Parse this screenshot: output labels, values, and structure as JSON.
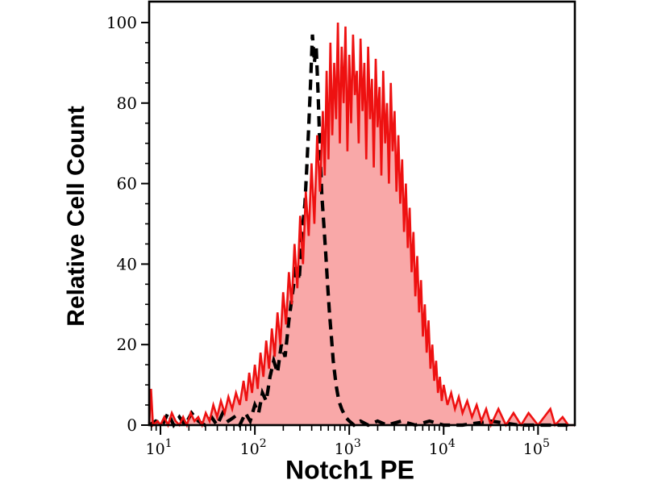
{
  "figure": {
    "background_color": "#ffffff",
    "axis_color": "#000000"
  },
  "chart_data": {
    "type": "area",
    "subtype": "flow-cytometry-histogram-overlay",
    "title": "",
    "xlabel": "Notch1 PE",
    "ylabel": "Relative Cell Count",
    "x_scale": "log10",
    "x_range_log10": [
      0.88,
      5.39
    ],
    "y_range": [
      0,
      105.2
    ],
    "x_ticks_exponents": [
      1,
      2,
      3,
      4,
      5
    ],
    "x_tick_base": "10",
    "y_ticks": [
      0,
      20,
      40,
      60,
      80,
      100
    ],
    "y_minor_step": 5,
    "grid": false,
    "legend": "none",
    "series": [
      {
        "name": "stained-sample-red-filled",
        "style": "solid-filled",
        "line_color": "#ee1111",
        "fill_color": "#f9a8a8",
        "points_log10x_value": [
          [
            0.88,
            0
          ],
          [
            0.9,
            9
          ],
          [
            0.92,
            0
          ],
          [
            0.97,
            1
          ],
          [
            1.0,
            0
          ],
          [
            1.04,
            2
          ],
          [
            1.08,
            0
          ],
          [
            1.12,
            3
          ],
          [
            1.16,
            1
          ],
          [
            1.2,
            0
          ],
          [
            1.24,
            2
          ],
          [
            1.28,
            0
          ],
          [
            1.32,
            3
          ],
          [
            1.36,
            1
          ],
          [
            1.4,
            2
          ],
          [
            1.44,
            0
          ],
          [
            1.48,
            3
          ],
          [
            1.52,
            1
          ],
          [
            1.56,
            5
          ],
          [
            1.6,
            2
          ],
          [
            1.64,
            6
          ],
          [
            1.68,
            3
          ],
          [
            1.72,
            7
          ],
          [
            1.76,
            4
          ],
          [
            1.8,
            8
          ],
          [
            1.84,
            5
          ],
          [
            1.88,
            11
          ],
          [
            1.91,
            6
          ],
          [
            1.94,
            13
          ],
          [
            1.97,
            8
          ],
          [
            2.0,
            15
          ],
          [
            2.03,
            9
          ],
          [
            2.06,
            18
          ],
          [
            2.09,
            12
          ],
          [
            2.12,
            21
          ],
          [
            2.15,
            14
          ],
          [
            2.18,
            24
          ],
          [
            2.21,
            17
          ],
          [
            2.24,
            28
          ],
          [
            2.27,
            20
          ],
          [
            2.3,
            33
          ],
          [
            2.33,
            25
          ],
          [
            2.36,
            38
          ],
          [
            2.39,
            30
          ],
          [
            2.42,
            45
          ],
          [
            2.45,
            34
          ],
          [
            2.48,
            52
          ],
          [
            2.51,
            40
          ],
          [
            2.54,
            58
          ],
          [
            2.57,
            47
          ],
          [
            2.6,
            65
          ],
          [
            2.63,
            50
          ],
          [
            2.66,
            72
          ],
          [
            2.69,
            58
          ],
          [
            2.72,
            78
          ],
          [
            2.74,
            62
          ],
          [
            2.76,
            88
          ],
          [
            2.78,
            66
          ],
          [
            2.8,
            95
          ],
          [
            2.82,
            72
          ],
          [
            2.84,
            90
          ],
          [
            2.86,
            76
          ],
          [
            2.88,
            100
          ],
          [
            2.9,
            70
          ],
          [
            2.92,
            94
          ],
          [
            2.94,
            80
          ],
          [
            2.96,
            99
          ],
          [
            2.98,
            68
          ],
          [
            3.0,
            92
          ],
          [
            3.02,
            75
          ],
          [
            3.04,
            97
          ],
          [
            3.06,
            82
          ],
          [
            3.08,
            88
          ],
          [
            3.1,
            70
          ],
          [
            3.12,
            96
          ],
          [
            3.14,
            78
          ],
          [
            3.16,
            90
          ],
          [
            3.18,
            66
          ],
          [
            3.2,
            94
          ],
          [
            3.22,
            76
          ],
          [
            3.24,
            86
          ],
          [
            3.26,
            64
          ],
          [
            3.28,
            91
          ],
          [
            3.3,
            74
          ],
          [
            3.32,
            84
          ],
          [
            3.34,
            62
          ],
          [
            3.36,
            88
          ],
          [
            3.38,
            70
          ],
          [
            3.4,
            80
          ],
          [
            3.42,
            60
          ],
          [
            3.44,
            85
          ],
          [
            3.46,
            68
          ],
          [
            3.48,
            78
          ],
          [
            3.5,
            58
          ],
          [
            3.52,
            72
          ],
          [
            3.54,
            55
          ],
          [
            3.56,
            66
          ],
          [
            3.58,
            48
          ],
          [
            3.6,
            60
          ],
          [
            3.62,
            44
          ],
          [
            3.64,
            54
          ],
          [
            3.66,
            38
          ],
          [
            3.68,
            48
          ],
          [
            3.7,
            32
          ],
          [
            3.72,
            42
          ],
          [
            3.74,
            28
          ],
          [
            3.76,
            36
          ],
          [
            3.78,
            22
          ],
          [
            3.8,
            30
          ],
          [
            3.82,
            18
          ],
          [
            3.84,
            26
          ],
          [
            3.86,
            14
          ],
          [
            3.88,
            20
          ],
          [
            3.9,
            11
          ],
          [
            3.92,
            16
          ],
          [
            3.94,
            8
          ],
          [
            3.96,
            12
          ],
          [
            3.98,
            6
          ],
          [
            4.0,
            10
          ],
          [
            4.04,
            5
          ],
          [
            4.08,
            8
          ],
          [
            4.12,
            4
          ],
          [
            4.16,
            7
          ],
          [
            4.2,
            3
          ],
          [
            4.25,
            6
          ],
          [
            4.3,
            2
          ],
          [
            4.35,
            5
          ],
          [
            4.4,
            1
          ],
          [
            4.45,
            4
          ],
          [
            4.5,
            0
          ],
          [
            4.58,
            4
          ],
          [
            4.66,
            0
          ],
          [
            4.74,
            3
          ],
          [
            4.82,
            0
          ],
          [
            4.9,
            3
          ],
          [
            5.0,
            0
          ],
          [
            5.13,
            4
          ],
          [
            5.18,
            0
          ],
          [
            5.26,
            2
          ],
          [
            5.32,
            0
          ],
          [
            5.39,
            0
          ]
        ]
      },
      {
        "name": "control-black-dashed",
        "style": "dashed",
        "line_color": "#000000",
        "fill_color": "none",
        "points_log10x_value": [
          [
            0.88,
            0
          ],
          [
            0.95,
            1
          ],
          [
            1.02,
            0
          ],
          [
            1.08,
            3
          ],
          [
            1.14,
            0
          ],
          [
            1.2,
            2
          ],
          [
            1.26,
            0
          ],
          [
            1.33,
            3
          ],
          [
            1.4,
            1
          ],
          [
            1.47,
            0
          ],
          [
            1.54,
            2
          ],
          [
            1.6,
            0
          ],
          [
            1.66,
            3
          ],
          [
            1.72,
            1
          ],
          [
            1.78,
            2
          ],
          [
            1.84,
            0
          ],
          [
            1.9,
            3
          ],
          [
            1.95,
            1
          ],
          [
            2.0,
            5
          ],
          [
            2.04,
            3
          ],
          [
            2.08,
            8
          ],
          [
            2.12,
            6
          ],
          [
            2.16,
            12
          ],
          [
            2.2,
            16
          ],
          [
            2.24,
            13
          ],
          [
            2.28,
            20
          ],
          [
            2.32,
            17
          ],
          [
            2.36,
            26
          ],
          [
            2.4,
            33
          ],
          [
            2.44,
            40
          ],
          [
            2.47,
            36
          ],
          [
            2.5,
            48
          ],
          [
            2.53,
            55
          ],
          [
            2.55,
            64
          ],
          [
            2.57,
            74
          ],
          [
            2.59,
            85
          ],
          [
            2.61,
            97
          ],
          [
            2.63,
            90
          ],
          [
            2.65,
            94
          ],
          [
            2.67,
            82
          ],
          [
            2.69,
            68
          ],
          [
            2.71,
            57
          ],
          [
            2.73,
            50
          ],
          [
            2.75,
            43
          ],
          [
            2.77,
            35
          ],
          [
            2.79,
            28
          ],
          [
            2.81,
            22
          ],
          [
            2.83,
            16
          ],
          [
            2.86,
            10
          ],
          [
            2.89,
            6
          ],
          [
            2.92,
            4
          ],
          [
            2.96,
            2
          ],
          [
            3.0,
            1
          ],
          [
            3.05,
            0
          ],
          [
            3.12,
            1
          ],
          [
            3.2,
            0
          ],
          [
            3.3,
            1
          ],
          [
            3.4,
            0
          ],
          [
            3.55,
            1
          ],
          [
            3.7,
            0
          ],
          [
            3.85,
            1
          ],
          [
            4.0,
            0
          ],
          [
            4.2,
            0
          ],
          [
            4.5,
            1
          ],
          [
            4.8,
            0
          ],
          [
            5.1,
            0
          ],
          [
            5.39,
            0
          ]
        ]
      }
    ]
  }
}
